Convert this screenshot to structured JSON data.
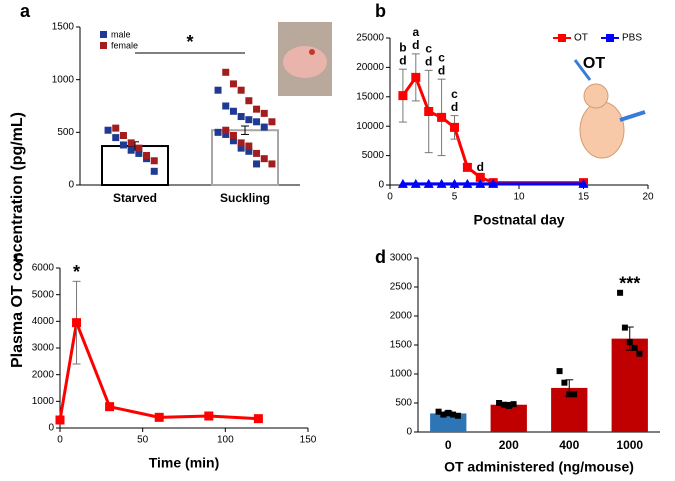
{
  "figure_ylabel": "Plasma OT concentration (pg/mL)",
  "chart_data": [
    {
      "type": "bar",
      "panel": "a",
      "categories": [
        "Starved",
        "Suckling"
      ],
      "values": [
        370,
        520
      ],
      "errors": [
        40,
        40
      ],
      "color": "#ffffff",
      "edge_colors": [
        "#000000",
        "#a6a6a6"
      ],
      "series": [
        {
          "name": "male",
          "color": "#1f3a93",
          "values": [
            [
              520,
              450,
              380,
              330,
              300,
              250,
              130
            ],
            [
              900,
              750,
              700,
              650,
              620,
              600,
              550,
              500,
              480,
              420,
              350,
              320,
              200
            ]
          ]
        },
        {
          "name": "female",
          "color": "#a31d1d",
          "values": [
            [
              540,
              470,
              400,
              350,
              280,
              230
            ],
            [
              1070,
              960,
              900,
              800,
              720,
              680,
              600,
              520,
              470,
              400,
              370,
              300,
              250,
              200
            ]
          ]
        }
      ],
      "comparison": "*",
      "ylim": [
        0,
        1500
      ],
      "yticks": [
        0,
        500,
        1000,
        1500
      ]
    },
    {
      "type": "line",
      "panel": "b",
      "xlabel": "Postnatal day",
      "illustration_label": "OT",
      "series": [
        {
          "name": "OT",
          "color": "#ff0000",
          "marker": "square",
          "x": [
            1,
            2,
            3,
            4,
            5,
            6,
            7,
            8,
            15
          ],
          "values": [
            15200,
            18300,
            12500,
            11500,
            9800,
            3000,
            1300,
            400,
            400
          ],
          "errors": [
            4500,
            4000,
            7000,
            6500,
            2000,
            400,
            300,
            100,
            100
          ],
          "point_labels": [
            [
              "b",
              "d"
            ],
            [
              "a",
              "d"
            ],
            [
              "c",
              "d"
            ],
            [
              "c",
              "d"
            ],
            [
              "c",
              "d"
            ],
            [],
            [
              "d"
            ],
            [],
            []
          ]
        },
        {
          "name": "PBS",
          "color": "#0000ff",
          "marker": "triangle",
          "x": [
            1,
            2,
            3,
            4,
            5,
            6,
            7,
            8,
            15
          ],
          "values": [
            200,
            200,
            200,
            200,
            200,
            200,
            200,
            200,
            200
          ]
        }
      ],
      "xlim": [
        0,
        20
      ],
      "xticks": [
        0,
        5,
        10,
        15,
        20
      ],
      "ylim": [
        0,
        25000
      ],
      "yticks": [
        0,
        5000,
        10000,
        15000,
        20000,
        25000
      ]
    },
    {
      "type": "line",
      "panel": "c",
      "xlabel": "Time (min)",
      "series": [
        {
          "name": "OT",
          "color": "#ff0000",
          "marker": "square",
          "x": [
            0,
            10,
            30,
            60,
            90,
            120
          ],
          "values": [
            300,
            3950,
            800,
            400,
            450,
            350
          ],
          "errors": [
            50,
            1550,
            100,
            60,
            60,
            50
          ],
          "point_labels": [
            [],
            [
              "*"
            ],
            [],
            [],
            [],
            []
          ]
        }
      ],
      "xlim": [
        0,
        150
      ],
      "xticks": [
        0,
        50,
        100,
        150
      ],
      "ylim": [
        0,
        6000
      ],
      "yticks": [
        0,
        1000,
        2000,
        3000,
        4000,
        5000,
        6000
      ]
    },
    {
      "type": "bar",
      "panel": "d",
      "xlabel": "OT administered (ng/mouse)",
      "categories": [
        "0",
        "200",
        "400",
        "1000"
      ],
      "values": [
        320,
        470,
        760,
        1610
      ],
      "errors": [
        40,
        40,
        140,
        200
      ],
      "colors": [
        "#2e75b6",
        "#c00000",
        "#c00000",
        "#c00000"
      ],
      "points": [
        [
          350,
          300,
          330,
          300,
          280
        ],
        [
          500,
          470,
          450,
          480
        ],
        [
          1050,
          850,
          650,
          650
        ],
        [
          2400,
          1800,
          1550,
          1450,
          1350
        ]
      ],
      "point_labels": [
        [],
        [],
        [],
        [
          "***"
        ]
      ],
      "ylim": [
        0,
        3000
      ],
      "yticks": [
        0,
        500,
        1000,
        1500,
        2000,
        2500,
        3000
      ]
    }
  ]
}
